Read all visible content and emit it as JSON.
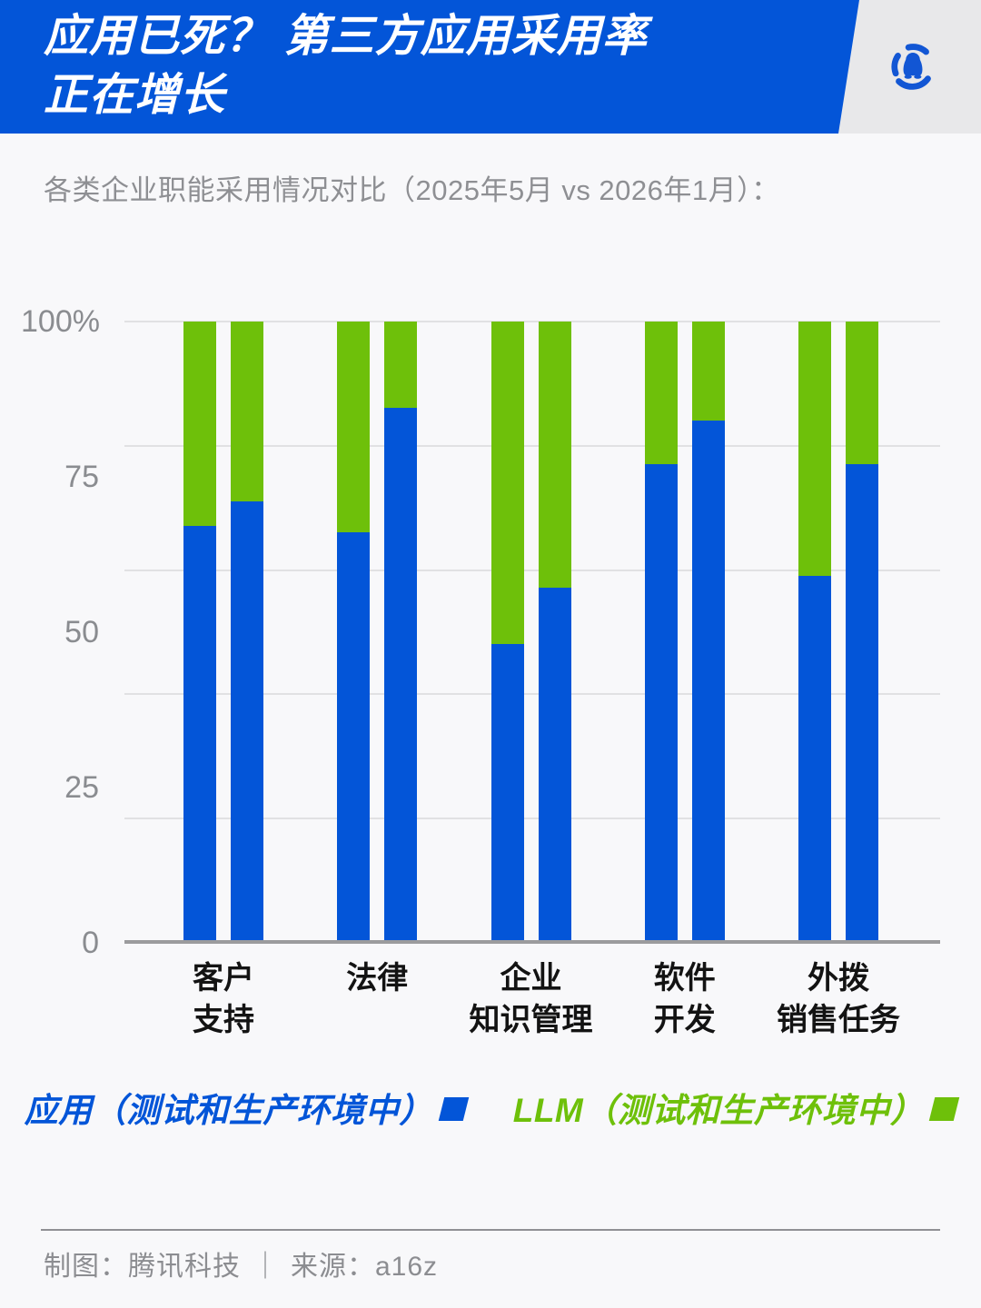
{
  "header": {
    "title_line1": "应用已死？ 第三方应用采用率",
    "title_line2": "正在增长",
    "logo": "tencent-tech-penguin-logo"
  },
  "subtitle": "各类企业职能采用情况对比（2025年5月 vs 2026年1月）：",
  "chart_data": {
    "type": "bar",
    "subtype": "stacked-100-percent-paired",
    "title": "各类企业职能采用情况对比（2025年5月 vs 2026年1月）",
    "unit": "%",
    "ylim": [
      0,
      100
    ],
    "grid": true,
    "gridline_values": [
      100,
      80,
      60,
      40,
      20
    ],
    "y_ticks": [
      {
        "label": "100%",
        "value": 100
      },
      {
        "label": "75",
        "value": 75
      },
      {
        "label": "50",
        "value": 50
      },
      {
        "label": "25",
        "value": 25
      },
      {
        "label": "0",
        "value": 0
      }
    ],
    "periods": [
      "2025年5月",
      "2026年1月"
    ],
    "categories": [
      "客户支持",
      "法律",
      "企业知识管理",
      "软件开发",
      "外拨销售任务"
    ],
    "groups": [
      {
        "category": "客户支持",
        "label_lines": [
          "客户",
          "支持"
        ],
        "bars": [
          {
            "period": "2025年5月",
            "app": 67,
            "llm": 33
          },
          {
            "period": "2026年1月",
            "app": 71,
            "llm": 29
          }
        ]
      },
      {
        "category": "法律",
        "label_lines": [
          "法律"
        ],
        "bars": [
          {
            "period": "2025年5月",
            "app": 66,
            "llm": 34
          },
          {
            "period": "2026年1月",
            "app": 86,
            "llm": 14
          }
        ]
      },
      {
        "category": "企业知识管理",
        "label_lines": [
          "企业",
          "知识管理"
        ],
        "bars": [
          {
            "period": "2025年5月",
            "app": 48,
            "llm": 52
          },
          {
            "period": "2026年1月",
            "app": 57,
            "llm": 43
          }
        ]
      },
      {
        "category": "软件开发",
        "label_lines": [
          "软件",
          "开发"
        ],
        "bars": [
          {
            "period": "2025年5月",
            "app": 77,
            "llm": 23
          },
          {
            "period": "2026年1月",
            "app": 84,
            "llm": 16
          }
        ]
      },
      {
        "category": "外拨销售任务",
        "label_lines": [
          "外拨",
          "销售任务"
        ],
        "bars": [
          {
            "period": "2025年5月",
            "app": 59,
            "llm": 41
          },
          {
            "period": "2026年1月",
            "app": 77,
            "llm": 23
          }
        ]
      }
    ],
    "series": [
      {
        "name": "应用（测试和生产环境中）",
        "color": "#0355D8"
      },
      {
        "name": "LLM（测试和生产环境中）",
        "color": "#6EC00A"
      }
    ],
    "legend_position": "bottom"
  },
  "footer": {
    "credit": "制图：腾讯科技",
    "separator": "｜",
    "source": "来源：a16z"
  },
  "colors": {
    "banner_blue": "#0355D8",
    "bar_app_blue": "#0355D8",
    "bar_llm_green": "#6EC00A",
    "page_background": "#F8F8FA",
    "header_strip_background": "#E8E8EA",
    "gridline": "#E1E1E3",
    "baseline": "#9B9B9D",
    "axis_text": "#8A8C90",
    "category_text": "#131313",
    "muted_text": "#8C8D91"
  }
}
